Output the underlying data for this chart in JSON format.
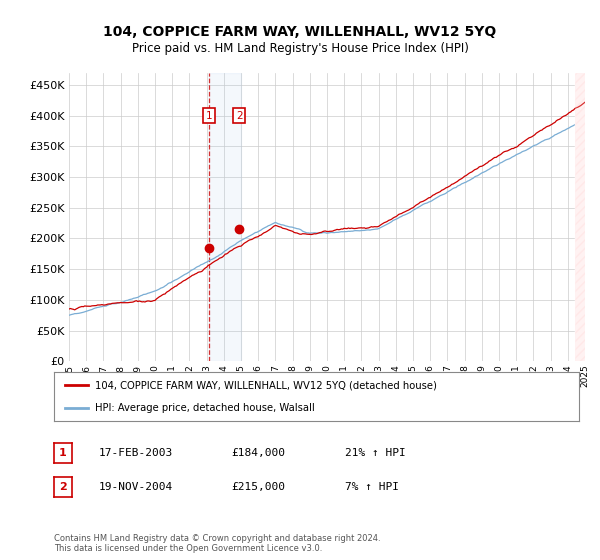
{
  "title": "104, COPPICE FARM WAY, WILLENHALL, WV12 5YQ",
  "subtitle": "Price paid vs. HM Land Registry's House Price Index (HPI)",
  "ylim": [
    0,
    470000
  ],
  "yticks": [
    0,
    50000,
    100000,
    150000,
    200000,
    250000,
    300000,
    350000,
    400000,
    450000
  ],
  "hpi_color": "#7aadd4",
  "price_color": "#cc0000",
  "bg_color": "#ffffff",
  "grid_color": "#cccccc",
  "sale1_x": 2003.12,
  "sale1_y": 184000,
  "sale2_x": 2004.9,
  "sale2_y": 215000,
  "legend_label_price": "104, COPPICE FARM WAY, WILLENHALL, WV12 5YQ (detached house)",
  "legend_label_hpi": "HPI: Average price, detached house, Walsall",
  "table_row1": [
    "1",
    "17-FEB-2003",
    "£184,000",
    "21% ↑ HPI"
  ],
  "table_row2": [
    "2",
    "19-NOV-2004",
    "£215,000",
    "7% ↑ HPI"
  ],
  "footnote1": "Contains HM Land Registry data © Crown copyright and database right 2024.",
  "footnote2": "This data is licensed under the Open Government Licence v3.0.",
  "xlim_start": 1995,
  "xlim_end": 2025
}
